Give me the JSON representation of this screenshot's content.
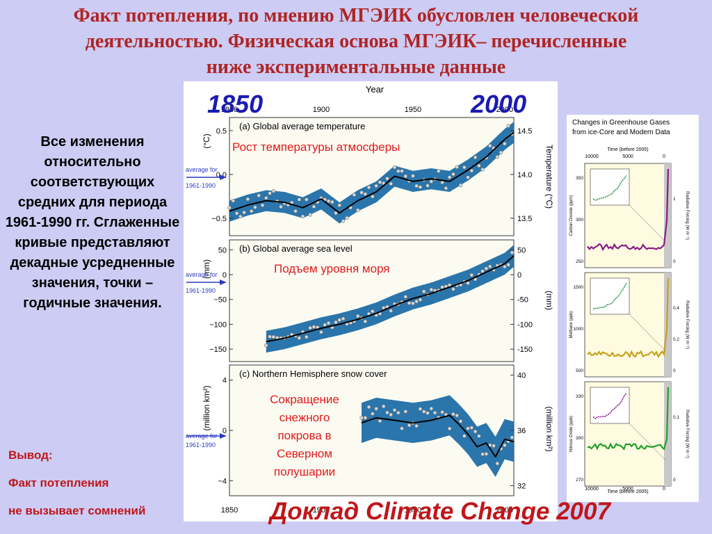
{
  "title_lines": [
    "Факт потепления, по мнению МГЭИК обусловлен человеческой",
    "деятельностью. Физическая основа МГЭИК– перечисленные",
    "ниже экспериментальные данные"
  ],
  "left_text": "Все изменения относительно соответствующих средних для периода 1961-1990 гг. Сглаженные кривые представляют декадные усредненные значения, точки – годичные значения.",
  "conclusion": {
    "label": "Вывод:",
    "line1": "Факт потепления",
    "line2": "не вызывает сомнений"
  },
  "year_overlays": {
    "left": "1850",
    "right": "2000"
  },
  "report_label": "Доклад Climate Change 2007",
  "colors": {
    "title": "#b02424",
    "band": "#1f6ea6",
    "accent_red": "#e01a1a",
    "overlay_blue": "#1a1ab4",
    "background": "#ccccf4"
  },
  "main_chart": {
    "axis_title": "Year",
    "x_ticks": [
      "1850",
      "1900",
      "1950",
      "2000"
    ],
    "average_label": [
      "average for",
      "1961-1990"
    ],
    "panels": [
      {
        "title": "(a) Global average temperature",
        "overlay": "Рост температуры атмосферы",
        "left_unit": "(°C)",
        "left_ticks": [
          "0.5",
          "0.0",
          "−0.5"
        ],
        "right_unit": "Temperature (°C)",
        "right_ticks": [
          "14.5",
          "14.0",
          "13.5"
        ]
      },
      {
        "title": "(b) Global average sea level",
        "overlay": "Подъем уровня моря",
        "left_unit": "(mm)",
        "left_ticks": [
          "50",
          "0",
          "−50",
          "−100",
          "−150"
        ],
        "right_unit": "(mm)",
        "right_ticks": [
          "50",
          "0",
          "-50",
          "-100",
          "-150"
        ]
      },
      {
        "title": "(c) Northern Hemisphere snow cover",
        "overlay": [
          "Сокращение",
          "снежного",
          "покрова в",
          "Северном",
          "полушарии"
        ],
        "left_unit": "(million km²)",
        "left_ticks": [
          "4",
          "0",
          "−4"
        ],
        "right_unit": "(million km²)",
        "right_ticks": [
          "40",
          "36",
          "32"
        ]
      }
    ]
  },
  "chart_data": [
    {
      "type": "line",
      "title": "(a) Global average temperature",
      "xlabel": "Year",
      "ylabel": "(°C)",
      "xlim": [
        1850,
        2005
      ],
      "ylim": [
        -0.7,
        0.65
      ],
      "series": [
        {
          "x": [
            1850,
            1860,
            1870,
            1880,
            1890,
            1900,
            1910,
            1920,
            1930,
            1940,
            1950,
            1960,
            1970,
            1980,
            1990,
            2000,
            2005
          ],
          "values": [
            -0.42,
            -0.35,
            -0.3,
            -0.32,
            -0.38,
            -0.28,
            -0.44,
            -0.3,
            -0.2,
            -0.02,
            -0.08,
            -0.05,
            -0.08,
            0.05,
            0.2,
            0.4,
            0.48
          ]
        }
      ]
    },
    {
      "type": "line",
      "title": "(b) Global average sea level",
      "xlabel": "Year",
      "ylabel": "(mm)",
      "xlim": [
        1850,
        2005
      ],
      "ylim": [
        -175,
        70
      ],
      "series": [
        {
          "x": [
            1870,
            1880,
            1890,
            1900,
            1910,
            1920,
            1930,
            1940,
            1950,
            1960,
            1970,
            1980,
            1990,
            2000,
            2005
          ],
          "values": [
            -135,
            -128,
            -118,
            -108,
            -100,
            -90,
            -78,
            -62,
            -48,
            -38,
            -25,
            -12,
            5,
            22,
            38
          ]
        }
      ]
    },
    {
      "type": "line",
      "title": "(c) Northern Hemisphere snow cover",
      "xlabel": "Year",
      "ylabel": "(million km²)",
      "xlim": [
        1850,
        2005
      ],
      "ylim": [
        -5.2,
        5.2
      ],
      "series": [
        {
          "x": [
            1922,
            1930,
            1940,
            1950,
            1960,
            1970,
            1975,
            1980,
            1985,
            1990,
            1995,
            2000,
            2005
          ],
          "values": [
            0.6,
            1.0,
            0.8,
            0.6,
            0.8,
            1.2,
            0.5,
            -0.3,
            -1.3,
            -1.0,
            -2.1,
            -0.7,
            -0.9
          ]
        }
      ]
    },
    {
      "type": "line",
      "title": "Changes in Greenhouse Gases from Ice-Core and Modern Data",
      "xlabel": "Time (before 2005)",
      "x_ticks": [
        "10000",
        "5000",
        "0"
      ],
      "panels": [
        {
          "ylabel": "Carbon Dioxide (ppm)",
          "y_ticks": [
            "350",
            "300",
            "250"
          ],
          "right_label": "Radiative Forcing (W m⁻²)",
          "right_ticks": [
            "1",
            "0"
          ]
        },
        {
          "ylabel": "Methane (ppb)",
          "y_ticks": [
            "1500",
            "1000",
            "500"
          ],
          "right_label": "Radiative Forcing (W m⁻²)",
          "right_ticks": [
            "0.4",
            "0.2",
            "0"
          ]
        },
        {
          "ylabel": "Nitrous Oxide (ppb)",
          "y_ticks": [
            "330",
            "300",
            "270"
          ],
          "right_label": "Radiative Forcing (W m⁻²)",
          "right_ticks": [
            "0.1",
            "0"
          ]
        }
      ]
    }
  ]
}
